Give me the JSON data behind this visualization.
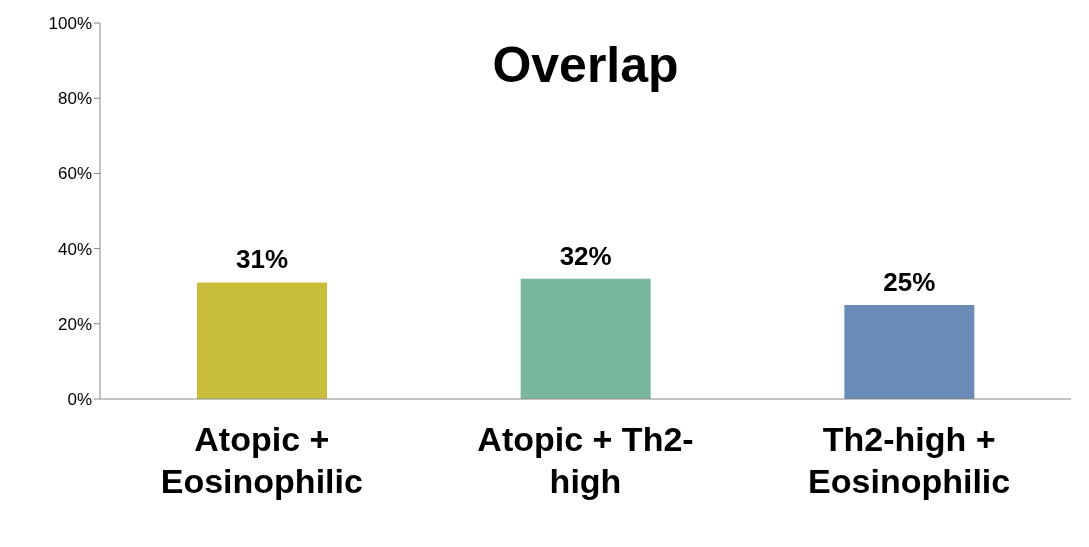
{
  "chart_data": {
    "type": "bar",
    "title": "Overlap",
    "categories": [
      "Atopic + Eosinophilic",
      "Atopic + Th2-high",
      "Th2-high + Eosinophilic"
    ],
    "values": [
      31,
      32,
      25
    ],
    "colors": [
      "#c9bd3c",
      "#78b79e",
      "#6a8bb5"
    ],
    "value_labels": [
      "31%",
      "32%",
      "25%"
    ],
    "ylim": [
      0,
      100
    ],
    "yticks": [
      {
        "value": 0,
        "label": "0%"
      },
      {
        "value": 20,
        "label": "20%"
      },
      {
        "value": 40,
        "label": "40%"
      },
      {
        "value": 60,
        "label": "60%"
      },
      {
        "value": 80,
        "label": "80%"
      },
      {
        "value": 100,
        "label": "100%"
      }
    ],
    "grid": false,
    "legend": false
  }
}
